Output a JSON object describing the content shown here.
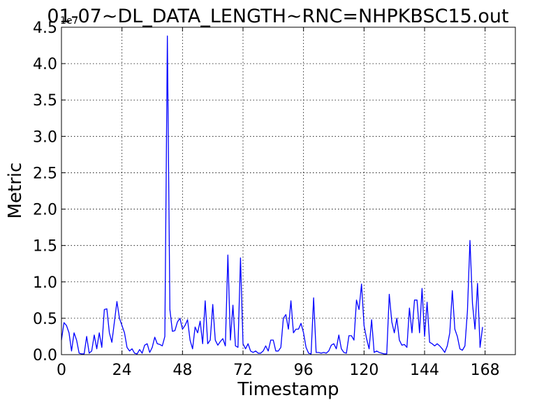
{
  "chart_data": {
    "type": "line",
    "title": "01-07~DL_DATA_LENGTH~RNC=NHPKBSC15.out",
    "xlabel": "Timestamp",
    "ylabel": "Metric",
    "y_multiplier_label": "1e7",
    "xlim": [
      0,
      180
    ],
    "ylim": [
      0,
      4.5
    ],
    "x_ticks": [
      0,
      24,
      48,
      72,
      96,
      120,
      144,
      168
    ],
    "x_tick_labels": [
      "0",
      "24",
      "48",
      "72",
      "96",
      "120",
      "144",
      "168"
    ],
    "y_ticks": [
      0,
      0.5,
      1.0,
      1.5,
      2.0,
      2.5,
      3.0,
      3.5,
      4.0,
      4.5
    ],
    "y_tick_labels": [
      "0.0",
      "0.5",
      "1.0",
      "1.5",
      "2.0",
      "2.5",
      "3.0",
      "3.5",
      "4.0",
      "4.5"
    ],
    "grid": true,
    "series_color": "#0000ff",
    "series": [
      {
        "values": [
          0.2,
          0.44,
          0.4,
          0.3,
          0.05,
          0.3,
          0.2,
          0.02,
          0.01,
          0.01,
          0.25,
          0.02,
          0.05,
          0.27,
          0.08,
          0.3,
          0.1,
          0.62,
          0.63,
          0.3,
          0.17,
          0.45,
          0.73,
          0.5,
          0.4,
          0.3,
          0.1,
          0.05,
          0.08,
          0.02,
          0.01,
          0.07,
          0.02,
          0.13,
          0.15,
          0.03,
          0.1,
          0.24,
          0.15,
          0.14,
          0.12,
          0.25,
          4.38,
          0.62,
          0.32,
          0.33,
          0.45,
          0.5,
          0.35,
          0.4,
          0.48,
          0.2,
          0.08,
          0.38,
          0.3,
          0.46,
          0.15,
          0.74,
          0.15,
          0.2,
          0.69,
          0.2,
          0.13,
          0.18,
          0.22,
          0.12,
          1.37,
          0.2,
          0.68,
          0.12,
          0.1,
          1.33,
          0.15,
          0.08,
          0.15,
          0.05,
          0.03,
          0.05,
          0.02,
          0.02,
          0.05,
          0.12,
          0.05,
          0.2,
          0.2,
          0.05,
          0.05,
          0.1,
          0.5,
          0.55,
          0.35,
          0.74,
          0.3,
          0.35,
          0.35,
          0.43,
          0.3,
          0.1,
          0.02,
          0.01,
          0.78,
          0.03,
          0.03,
          0.02,
          0.03,
          0.02,
          0.05,
          0.13,
          0.15,
          0.08,
          0.27,
          0.08,
          0.03,
          0.02,
          0.26,
          0.26,
          0.2,
          0.75,
          0.62,
          0.97,
          0.4,
          0.22,
          0.08,
          0.48,
          0.03,
          0.05,
          0.03,
          0.02,
          0.01,
          0.01,
          0.83,
          0.45,
          0.3,
          0.5,
          0.2,
          0.13,
          0.14,
          0.1,
          0.64,
          0.3,
          0.75,
          0.75,
          0.3,
          0.91,
          0.25,
          0.72,
          0.17,
          0.15,
          0.12,
          0.15,
          0.12,
          0.08,
          0.03,
          0.12,
          0.3,
          0.88,
          0.35,
          0.25,
          0.08,
          0.06,
          0.12,
          0.6,
          1.57,
          0.7,
          0.35,
          0.98,
          0.1,
          0.38
        ]
      }
    ]
  }
}
